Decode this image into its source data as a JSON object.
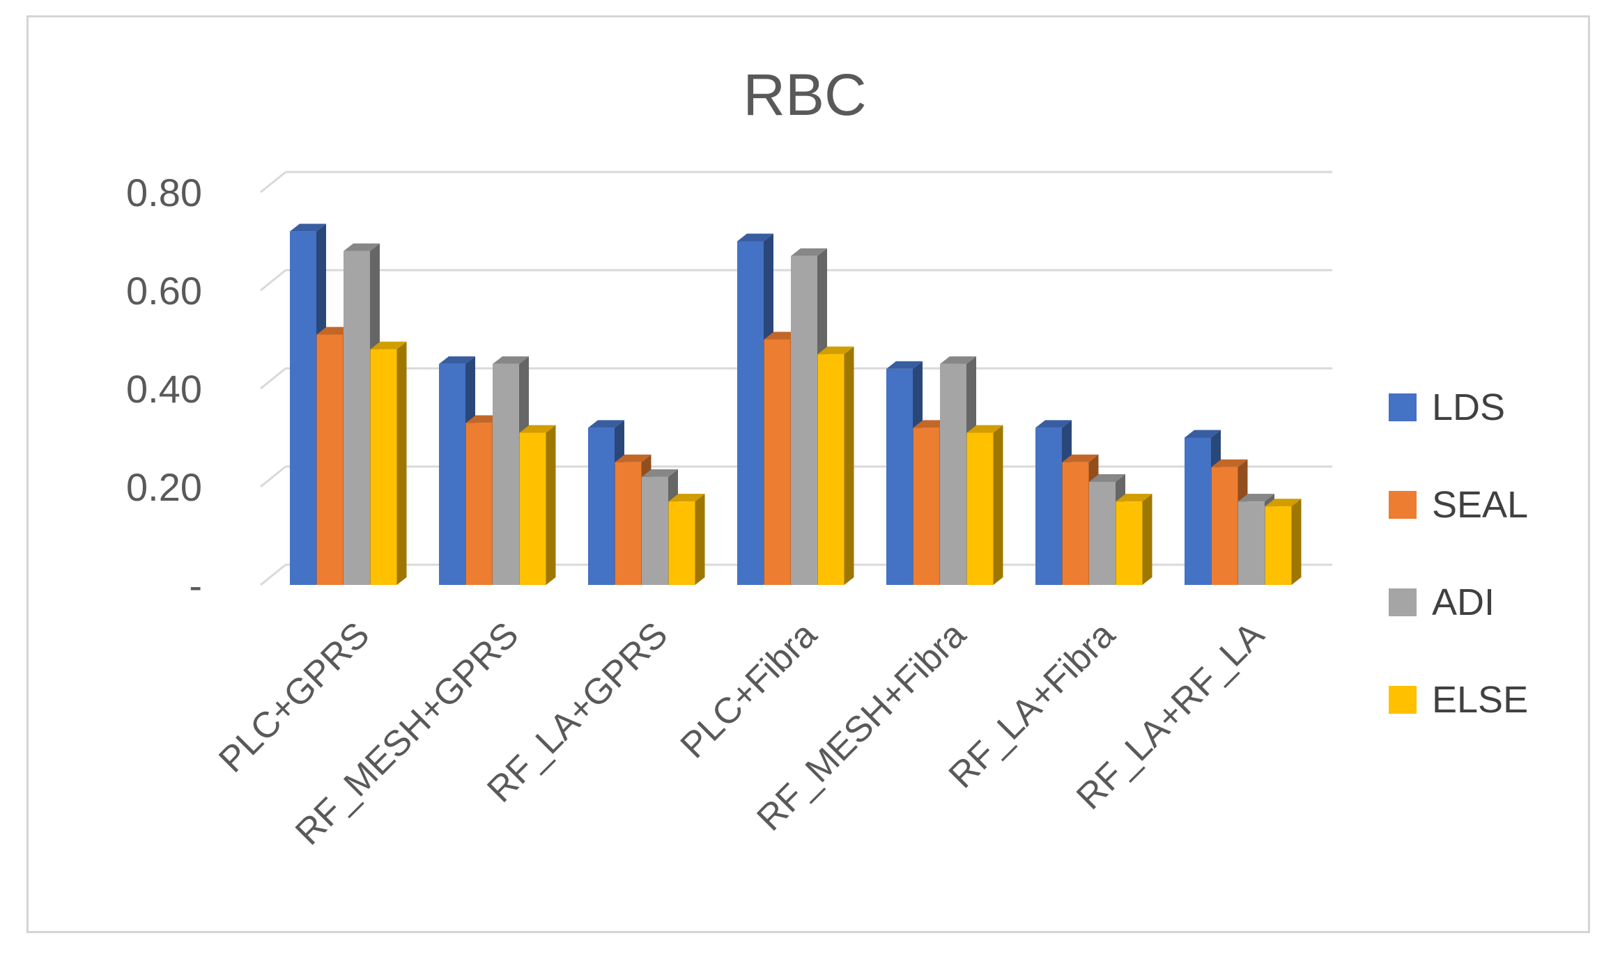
{
  "chart_data": {
    "type": "bar",
    "title": "RBC",
    "xlabel": "",
    "ylabel": "",
    "ylim": [
      0,
      0.8
    ],
    "y_ticks": [
      "-",
      "0.20",
      "0.40",
      "0.60",
      "0.80"
    ],
    "categories": [
      "PLC+GPRS",
      "RF_MESH+GPRS",
      "RF_LA+GPRS",
      "PLC+Fibra",
      "RF_MESH+Fibra",
      "RF_LA+Fibra",
      "RF_LA+RF_LA"
    ],
    "series": [
      {
        "name": "LDS",
        "color": "#4472C4",
        "values": [
          0.72,
          0.45,
          0.32,
          0.7,
          0.44,
          0.32,
          0.3
        ]
      },
      {
        "name": "SEAL",
        "color": "#ED7D31",
        "values": [
          0.51,
          0.33,
          0.25,
          0.5,
          0.32,
          0.25,
          0.24
        ]
      },
      {
        "name": "ADI",
        "color": "#A5A5A5",
        "values": [
          0.68,
          0.45,
          0.22,
          0.67,
          0.45,
          0.21,
          0.17
        ]
      },
      {
        "name": "ELSE",
        "color": "#FFC000",
        "values": [
          0.48,
          0.31,
          0.17,
          0.47,
          0.31,
          0.17,
          0.16
        ]
      }
    ],
    "grid": true,
    "legend_position": "right",
    "three_d": true
  }
}
